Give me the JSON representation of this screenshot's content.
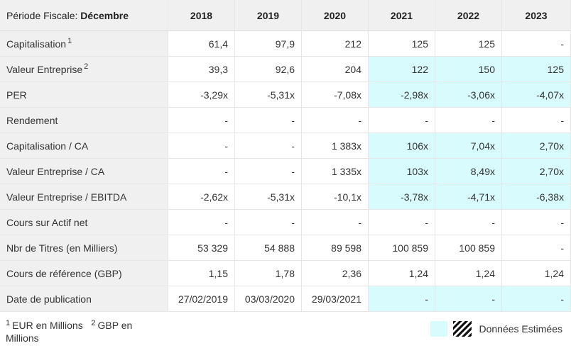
{
  "header": {
    "period_label": "Période Fiscale:",
    "period_value": "Décembre",
    "years": [
      "2018",
      "2019",
      "2020",
      "2021",
      "2022",
      "2023"
    ]
  },
  "rows": [
    {
      "label": "Capitalisation",
      "sup": "1",
      "values": [
        "61,4",
        "97,9",
        "212",
        "125",
        "125",
        "-"
      ],
      "estimated": [
        false,
        false,
        false,
        false,
        false,
        false
      ]
    },
    {
      "label": "Valeur Entreprise",
      "sup": "2",
      "values": [
        "39,3",
        "92,6",
        "204",
        "122",
        "150",
        "125"
      ],
      "estimated": [
        false,
        false,
        false,
        true,
        true,
        true
      ]
    },
    {
      "label": "PER",
      "sup": "",
      "values": [
        "-3,29x",
        "-5,31x",
        "-7,08x",
        "-2,98x",
        "-3,06x",
        "-4,07x"
      ],
      "estimated": [
        false,
        false,
        false,
        true,
        true,
        true
      ]
    },
    {
      "label": "Rendement",
      "sup": "",
      "values": [
        "-",
        "-",
        "-",
        "-",
        "-",
        "-"
      ],
      "estimated": [
        false,
        false,
        false,
        false,
        false,
        false
      ]
    },
    {
      "label": "Capitalisation / CA",
      "sup": "",
      "values": [
        "-",
        "-",
        "1 383x",
        "106x",
        "7,04x",
        "2,70x"
      ],
      "estimated": [
        false,
        false,
        false,
        true,
        true,
        true
      ]
    },
    {
      "label": "Valeur Entreprise / CA",
      "sup": "",
      "values": [
        "-",
        "-",
        "1 335x",
        "103x",
        "8,49x",
        "2,70x"
      ],
      "estimated": [
        false,
        false,
        false,
        true,
        true,
        true
      ]
    },
    {
      "label": "Valeur Entreprise / EBITDA",
      "sup": "",
      "values": [
        "-2,62x",
        "-5,31x",
        "-10,1x",
        "-3,78x",
        "-4,71x",
        "-6,38x"
      ],
      "estimated": [
        false,
        false,
        false,
        true,
        true,
        true
      ]
    },
    {
      "label": "Cours sur Actif net",
      "sup": "",
      "values": [
        "-",
        "-",
        "-",
        "-",
        "-",
        "-"
      ],
      "estimated": [
        false,
        false,
        false,
        false,
        false,
        false
      ]
    },
    {
      "label": "Nbr de Titres (en Milliers)",
      "sup": "",
      "values": [
        "53 329",
        "54 888",
        "89 598",
        "100 859",
        "100 859",
        "-"
      ],
      "estimated": [
        false,
        false,
        false,
        false,
        false,
        false
      ]
    },
    {
      "label": "Cours de référence (GBP)",
      "sup": "",
      "values": [
        "1,15",
        "1,78",
        "2,36",
        "1,24",
        "1,24",
        "1,24"
      ],
      "estimated": [
        false,
        false,
        false,
        false,
        false,
        false
      ]
    },
    {
      "label": "Date de publication",
      "sup": "",
      "values": [
        "27/02/2019",
        "03/03/2020",
        "29/03/2021",
        "-",
        "-",
        "-"
      ],
      "estimated": [
        false,
        false,
        false,
        true,
        true,
        true
      ]
    }
  ],
  "footnotes": {
    "note1_sup": "1",
    "note1_text": "EUR en Millions",
    "note2_sup": "2",
    "note2_text": "GBP en Millions"
  },
  "legend": {
    "estimated_label": "Données Estimées",
    "estimated_color": "#d8fbfd"
  }
}
